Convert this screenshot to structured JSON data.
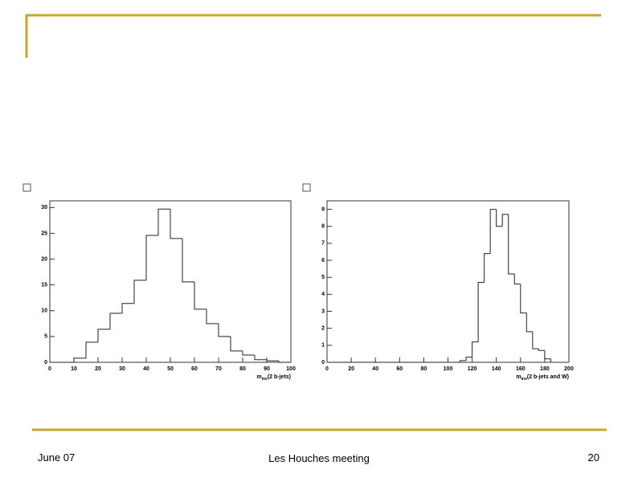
{
  "chart_data": [
    {
      "type": "histogram",
      "xlabel": [
        "m",
        "inv",
        "(2 b-jets)"
      ],
      "bins": [
        0,
        5,
        10,
        15,
        20,
        25,
        30,
        35,
        40,
        45,
        50,
        55,
        60,
        65,
        70,
        75,
        80,
        85,
        90,
        95,
        100
      ],
      "counts": [
        0,
        0,
        0.8,
        3.9,
        6.4,
        9.5,
        11.4,
        15.9,
        24.6,
        29.7,
        24,
        15.6,
        10.3,
        7.5,
        5,
        2.2,
        1.4,
        0.5,
        0.3,
        0
      ],
      "color": "#222222",
      "xlim": [
        0,
        100
      ],
      "xticks": [
        0,
        10,
        20,
        30,
        40,
        50,
        60,
        70,
        80,
        90,
        100
      ],
      "ylim": [
        0,
        31.3
      ],
      "yticks": [
        0,
        5,
        10,
        15,
        20,
        25,
        30
      ]
    },
    {
      "type": "histogram",
      "xlabel": [
        "m",
        "inv",
        "(2 b-jets and W)"
      ],
      "bins": [
        0,
        5,
        10,
        15,
        20,
        25,
        30,
        35,
        40,
        45,
        50,
        55,
        60,
        65,
        70,
        75,
        80,
        85,
        90,
        95,
        100,
        105,
        110,
        115,
        120,
        125,
        130,
        135,
        140,
        145,
        150,
        155,
        160,
        165,
        170,
        175,
        180,
        185
      ],
      "counts": [
        0,
        0,
        0,
        0,
        0,
        0,
        0,
        0,
        0,
        0,
        0,
        0,
        0,
        0,
        0,
        0,
        0,
        0,
        0,
        0,
        0,
        0,
        0.1,
        0.3,
        1.2,
        4.7,
        6.4,
        9,
        8,
        8.7,
        5.2,
        4.6,
        2.9,
        1.8,
        0.8,
        0.7,
        0.2
      ],
      "color": "#222222",
      "xlim": [
        0,
        200
      ],
      "xticks": [
        0,
        20,
        40,
        60,
        80,
        100,
        120,
        140,
        160,
        180,
        200
      ],
      "ylim": [
        0,
        9.5
      ],
      "yticks": [
        0,
        1,
        2,
        3,
        4,
        5,
        6,
        7,
        8,
        9
      ]
    }
  ],
  "footer": {
    "date": "June 07",
    "event": "Les Houches meeting",
    "page": "20"
  }
}
